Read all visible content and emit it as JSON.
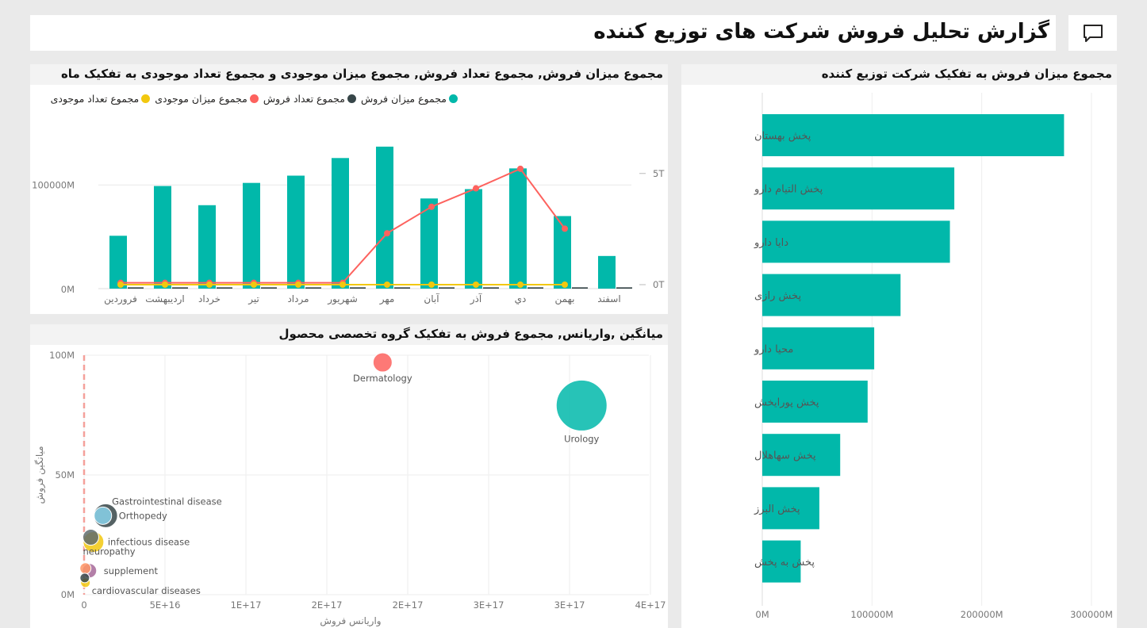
{
  "report_title": "گزارش تحلیل فروش شرکت های توزیع کننده",
  "colors": {
    "teal": "#01B8AA",
    "dark": "#374649",
    "red": "#FD625E",
    "yellow": "#F2C80F"
  },
  "combo": {
    "title": "مجموع میزان فروش, مجموع تعداد فروش, مجموع میزان موجودی و مجموع تعداد موجودی به تفکیک ماه",
    "legend": [
      "مجموع میزان فروش",
      "مجموع تعداد فروش",
      "مجموع میزان موجودی",
      "مجموع تعداد موجودی"
    ],
    "y_ticks": [
      "100000M",
      "0M"
    ],
    "y2_ticks": [
      "5T",
      "0T"
    ]
  },
  "distributor": {
    "title": "مجموع میزان فروش به تفکیک شرکت توزیع کننده",
    "x_ticks": [
      "0M",
      "100000M",
      "200000M",
      "300000M"
    ]
  },
  "scatter": {
    "title": "میانگین ,واریانس, مجموع فروش به تفکیک گروه تخصصی محصول",
    "xlabel": "واریانس فروش",
    "ylabel": "میانگین فروش",
    "x_ticks": [
      "0",
      "5E+16",
      "1E+17",
      "2E+17",
      "2E+17",
      "3E+17",
      "3E+17",
      "4E+17"
    ],
    "y_ticks": [
      "100M",
      "50M",
      "0M"
    ]
  },
  "chart_data": [
    {
      "type": "bar",
      "title": "مجموع میزان فروش, مجموع تعداد فروش, مجموع میزان موجودی و مجموع تعداد موجودی به تفکیک ماه",
      "categories": [
        "فروردین",
        "اردیبهشت",
        "خرداد",
        "تیر",
        "مرداد",
        "شهریور",
        "مهر",
        "آبان",
        "آذر",
        "دي",
        "بهمن",
        "اسفند"
      ],
      "ylim": [
        0,
        140000
      ],
      "y2lim": [
        0,
        6.3
      ],
      "series": [
        {
          "name": "مجموع میزان فروش",
          "type": "bar",
          "values": [
            51000,
            99000,
            80500,
            102000,
            109000,
            126000,
            137000,
            87000,
            96000,
            116000,
            70000,
            31500
          ]
        },
        {
          "name": "مجموع تعداد فروش",
          "type": "bar",
          "values": [
            500,
            500,
            500,
            500,
            500,
            500,
            500,
            500,
            500,
            500,
            500,
            500
          ]
        },
        {
          "name": "مجموع میزان موجودی",
          "type": "line",
          "values": [
            0.15,
            0.15,
            0.15,
            0.15,
            0.15,
            0.15,
            2.3,
            3.45,
            4.25,
            5.1,
            2.5,
            null
          ]
        },
        {
          "name": "مجموع تعداد موجودی",
          "type": "line",
          "values": [
            0.0,
            0.0,
            0.0,
            0.0,
            0.0,
            0.0,
            0.0,
            0.0,
            0.0,
            0.0,
            0.0,
            null
          ]
        }
      ],
      "legend_position": "top-right"
    },
    {
      "type": "bar",
      "orientation": "horizontal",
      "title": "مجموع میزان فروش به تفکیک شرکت توزیع کننده",
      "categories": [
        "پخش بهستان",
        "پخش التیام دارو",
        "دایا دارو",
        "پخش رازی",
        "محیا دارو",
        "پخش پورایخش",
        "پخش سهاهلال",
        "پخش البرز",
        "پخش به پخش"
      ],
      "values": [
        275000,
        175000,
        171000,
        126000,
        102000,
        96000,
        71000,
        52000,
        35000
      ],
      "xlim": [
        0,
        300000
      ]
    },
    {
      "type": "scatter",
      "title": "میانگین ,واریانس, مجموع فروش به تفکیک گروه تخصصی محصول",
      "xlabel": "واریانس فروش",
      "ylabel": "میانگین فروش",
      "xlim": [
        0,
        4.2e+17
      ],
      "ylim": [
        0,
        100
      ],
      "points": [
        {
          "label": "Dermatology",
          "x": 2.22e+17,
          "y": 97,
          "size": 12,
          "color": "#FD625E"
        },
        {
          "label": "Urology",
          "x": 3.7e+17,
          "y": 79,
          "size": 32,
          "color": "#01B8AA"
        },
        {
          "label": "Gastrointestinal disease",
          "x": 1.6e+16,
          "y": 33,
          "size": 15,
          "color": "#374649"
        },
        {
          "label": "Orthopedy",
          "x": 1.4e+16,
          "y": 33,
          "size": 11,
          "color": "#8AD4EB"
        },
        {
          "label": "infectious disease",
          "x": 7000000000000000.0,
          "y": 22,
          "size": 13,
          "color": "#F2C80F"
        },
        {
          "label": "neuropathy",
          "x": 5000000000000000.0,
          "y": 24,
          "size": 10,
          "color": "#5F6B6D"
        },
        {
          "label": "supplement",
          "x": 4000000000000000.0,
          "y": 10,
          "size": 9,
          "color": "#A66999"
        },
        {
          "label": "",
          "x": 1000000000000000.0,
          "y": 11,
          "size": 7,
          "color": "#FE9666"
        },
        {
          "label": "cardiovascular diseases",
          "x": 1000000000000000.0,
          "y": 5,
          "size": 6,
          "color": "#F2C80F"
        },
        {
          "label": "",
          "x": 500000000000000.0,
          "y": 7,
          "size": 6,
          "color": "#374649"
        }
      ]
    }
  ]
}
